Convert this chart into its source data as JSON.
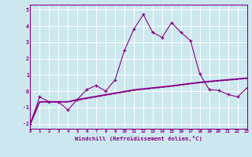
{
  "xlabel": "Windchill (Refroidissement éolien,°C)",
  "background_color": "#cce8ee",
  "grid_color": "#ffffff",
  "line_color": "#880088",
  "x_line": [
    0,
    1,
    2,
    3,
    4,
    5,
    6,
    7,
    8,
    9,
    10,
    11,
    12,
    13,
    14,
    15,
    16,
    17,
    18,
    19,
    20,
    21,
    22,
    23
  ],
  "y_line1": [
    -2.0,
    -0.35,
    -0.65,
    -0.65,
    -1.15,
    -0.5,
    0.1,
    0.35,
    0.0,
    0.7,
    2.5,
    3.8,
    4.7,
    3.6,
    3.3,
    4.2,
    3.6,
    3.1,
    1.05,
    0.1,
    0.05,
    -0.2,
    -0.35,
    0.2
  ],
  "y_line2": [
    -2.0,
    -0.65,
    -0.65,
    -0.65,
    -0.65,
    -0.55,
    -0.45,
    -0.35,
    -0.25,
    -0.15,
    -0.05,
    0.05,
    0.12,
    0.18,
    0.24,
    0.3,
    0.38,
    0.45,
    0.52,
    0.58,
    0.63,
    0.68,
    0.73,
    0.78
  ],
  "y_line3": [
    -2.0,
    -0.65,
    -0.65,
    -0.65,
    -0.65,
    -0.52,
    -0.42,
    -0.32,
    -0.22,
    -0.12,
    -0.02,
    0.08,
    0.14,
    0.2,
    0.26,
    0.32,
    0.4,
    0.47,
    0.54,
    0.6,
    0.65,
    0.7,
    0.75,
    0.8
  ],
  "ylim": [
    -2.3,
    5.3
  ],
  "yticks": [
    -2,
    -1,
    0,
    1,
    2,
    3,
    4,
    5
  ],
  "xlim": [
    0,
    23
  ],
  "xticks": [
    0,
    1,
    2,
    3,
    4,
    5,
    6,
    7,
    8,
    9,
    10,
    11,
    12,
    13,
    14,
    15,
    16,
    17,
    18,
    19,
    20,
    21,
    22,
    23
  ]
}
